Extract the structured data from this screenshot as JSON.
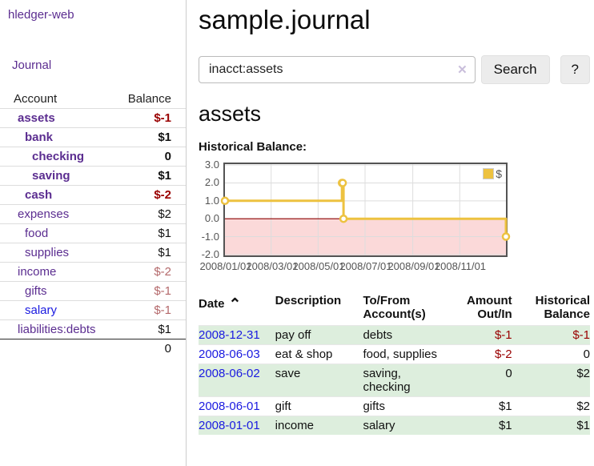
{
  "app": {
    "brand": "hledger-web"
  },
  "colors": {
    "link_purple": "#5b2d90",
    "link_blue": "#1a1ae0",
    "negative_strong": "#990000",
    "negative_muted": "#b4696b",
    "row_green": "#ddeedd",
    "chart_gold": "#edc240",
    "zero_line": "#8b0000",
    "negative_region": "#fbd9d9",
    "grid_line": "#dddddd"
  },
  "icons": {
    "clear": "✕",
    "sort_asc": "⌃",
    "legend_swatch": "$"
  },
  "sidebar": {
    "nav": {
      "journal": "Journal"
    },
    "accounts": {
      "headers": {
        "account": "Account",
        "balance": "Balance"
      },
      "rows": [
        {
          "name": "assets",
          "balance": "$-1",
          "depth": 1,
          "bold": true
        },
        {
          "name": "bank",
          "balance": "$1",
          "depth": 2,
          "bold": true
        },
        {
          "name": "checking",
          "balance": "0",
          "depth": 3,
          "bold": true
        },
        {
          "name": "saving",
          "balance": "$1",
          "depth": 3,
          "bold": true
        },
        {
          "name": "cash",
          "balance": "$-2",
          "depth": 2,
          "bold": true
        },
        {
          "name": "expenses",
          "balance": "$2",
          "depth": 1,
          "bold": false
        },
        {
          "name": "food",
          "balance": "$1",
          "depth": 2,
          "bold": false
        },
        {
          "name": "supplies",
          "balance": "$1",
          "depth": 2,
          "bold": false
        },
        {
          "name": "income",
          "balance": "$-2",
          "depth": 1,
          "bold": false
        },
        {
          "name": "gifts",
          "balance": "$-1",
          "depth": 2,
          "bold": false
        },
        {
          "name": "salary",
          "balance": "$-1",
          "depth": 2,
          "bold": false
        },
        {
          "name": "liabilities:debts",
          "balance": "$1",
          "depth": 1,
          "bold": false
        }
      ],
      "total": "0"
    }
  },
  "main": {
    "title": "sample.journal",
    "search": {
      "value": "inacct:assets",
      "button": "Search",
      "help": "?"
    },
    "section_title": "assets",
    "chart_label": "Historical Balance:"
  },
  "chart_data": {
    "type": "line",
    "step": true,
    "title": "Historical Balance",
    "series": [
      {
        "name": "$",
        "color": "#edc240",
        "points": [
          [
            "2008-01-01",
            1
          ],
          [
            "2008-06-01",
            2
          ],
          [
            "2008-06-02",
            2
          ],
          [
            "2008-06-03",
            0
          ],
          [
            "2008-12-31",
            -1
          ]
        ]
      }
    ],
    "x_range": [
      "2008-01-01",
      "2008-12-31"
    ],
    "ylim": [
      -2.05,
      3.05
    ],
    "y_ticks": [
      "3.0",
      "2.0",
      "1.0",
      "0.0",
      "-1.0",
      "-2.0"
    ],
    "x_ticks": [
      "2008/01/01",
      "2008/03/01",
      "2008/05/01",
      "2008/07/01",
      "2008/09/01",
      "2008/11/01"
    ],
    "legend": {
      "label": "$",
      "position": "top-right"
    },
    "grid": true,
    "zero_line_color": "#8b0000",
    "negative_region_color": "#fbd9d9"
  },
  "register": {
    "headers": [
      {
        "line1": "Date",
        "line2": ""
      },
      {
        "line1": "Description",
        "line2": ""
      },
      {
        "line1": "To/From",
        "line2": "Account(s)"
      },
      {
        "line1": "Amount",
        "line2": "Out/In"
      },
      {
        "line1": "Historical",
        "line2": "Balance"
      }
    ],
    "rows": [
      {
        "date": "2008-12-31",
        "description": "pay off",
        "accounts": "debts",
        "amount": "$-1",
        "balance": "$-1"
      },
      {
        "date": "2008-06-03",
        "description": "eat & shop",
        "accounts": "food, supplies",
        "amount": "$-2",
        "balance": "0"
      },
      {
        "date": "2008-06-02",
        "description": "save",
        "accounts": "saving, checking",
        "amount": "0",
        "balance": "$2"
      },
      {
        "date": "2008-06-01",
        "description": "gift",
        "accounts": "gifts",
        "amount": "$1",
        "balance": "$2"
      },
      {
        "date": "2008-01-01",
        "description": "income",
        "accounts": "salary",
        "amount": "$1",
        "balance": "$1"
      }
    ]
  }
}
